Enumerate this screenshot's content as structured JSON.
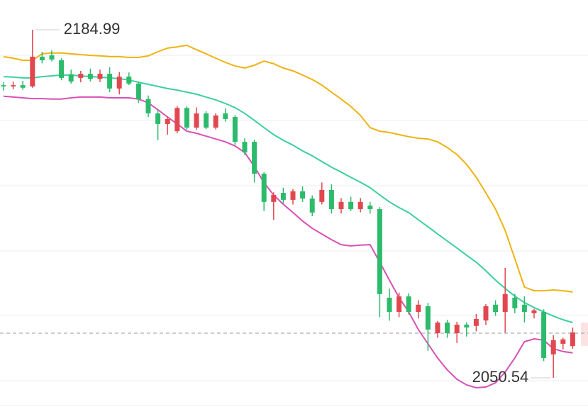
{
  "chart_data": {
    "type": "candlestick",
    "ylim": [
      2036.58,
      2196.49
    ],
    "up_color": "#e2474f",
    "down_color": "#2cbb6b",
    "max_label": "2184.99",
    "min_label": "2050.54",
    "reference_line": 2067.8,
    "open": [
      2163.6,
      2163.1,
      2163.6,
      2163.1,
      2174.6,
      2175.1,
      2173.2,
      2167.8,
      2166.4,
      2168.0,
      2166.0,
      2168.0,
      2162.3,
      2166.9,
      2164.2,
      2158.2,
      2152.7,
      2148.6,
      2145.8,
      2154.8,
      2147.2,
      2152.7,
      2147.2,
      2152.7,
      2151.3,
      2141.7,
      2141.7,
      2129.4,
      2118.5,
      2122.0,
      2119.3,
      2122.6,
      2119.8,
      2118.5,
      2123.1,
      2115.7,
      2118.5,
      2115.7,
      2117.1,
      2115.7,
      2081.5,
      2076.0,
      2082.0,
      2076.0,
      2078.2,
      2067.8,
      2071.9,
      2067.8,
      2071.1,
      2070.6,
      2072.7,
      2078.8,
      2076.0,
      2081.5,
      2078.8,
      2075.5,
      2076.0,
      2059.6,
      2063.7,
      2062.8
    ],
    "high": [
      2164.7,
      2165.0,
      2165.3,
      2184.99,
      2176.5,
      2177.0,
      2174.0,
      2169.6,
      2169.1,
      2170.0,
      2169.6,
      2170.5,
      2168.7,
      2168.5,
      2165.0,
      2159.6,
      2154.0,
      2151.5,
      2155.5,
      2155.4,
      2155.0,
      2153.5,
      2152.7,
      2154.6,
      2152.0,
      2143.0,
      2142.5,
      2130.0,
      2122.2,
      2124.0,
      2123.5,
      2124.5,
      2121.0,
      2126.0,
      2125.3,
      2120.0,
      2120.5,
      2120.0,
      2118.5,
      2116.5,
      2085.0,
      2083.5,
      2083.2,
      2080.5,
      2079.5,
      2072.5,
      2073.0,
      2072.2,
      2072.0,
      2075.2,
      2079.0,
      2080.5,
      2093.0,
      2083.0,
      2082.0,
      2077.2,
      2077.0,
      2067.0,
      2066.0,
      2070.0
    ],
    "low": [
      2161.5,
      2162.0,
      2161.8,
      2162.6,
      2172.0,
      2172.8,
      2165.5,
      2164.2,
      2164.7,
      2165.0,
      2164.8,
      2160.9,
      2160.0,
      2163.6,
      2156.8,
      2151.3,
      2142.3,
      2144.5,
      2145.0,
      2146.4,
      2146.4,
      2146.6,
      2146.5,
      2149.5,
      2140.6,
      2136.6,
      2126.0,
      2115.0,
      2111.6,
      2118.0,
      2117.5,
      2118.5,
      2113.0,
      2117.5,
      2114.0,
      2114.0,
      2115.0,
      2114.5,
      2114.0,
      2074.0,
      2072.6,
      2074.0,
      2075.0,
      2073.5,
      2061.0,
      2066.0,
      2066.0,
      2064.0,
      2066.5,
      2068.5,
      2071.0,
      2074.5,
      2068.0,
      2075.5,
      2072.0,
      2073.5,
      2057.0,
      2050.54,
      2061.5,
      2061.8
    ],
    "close": [
      2163.1,
      2163.6,
      2162.6,
      2174.6,
      2173.2,
      2173.5,
      2166.4,
      2165.0,
      2168.0,
      2166.0,
      2168.0,
      2162.3,
      2166.9,
      2164.2,
      2158.2,
      2152.7,
      2148.6,
      2150.5,
      2154.8,
      2147.2,
      2152.7,
      2147.2,
      2151.9,
      2150.5,
      2141.7,
      2137.6,
      2129.4,
      2118.5,
      2121.2,
      2119.3,
      2122.6,
      2119.8,
      2114.4,
      2123.1,
      2115.7,
      2118.5,
      2115.7,
      2118.5,
      2115.7,
      2082.9,
      2076.0,
      2082.0,
      2076.0,
      2078.8,
      2069.2,
      2071.9,
      2067.8,
      2071.1,
      2070.0,
      2073.3,
      2078.2,
      2076.0,
      2082.9,
      2077.4,
      2076.0,
      2076.6,
      2058.2,
      2065.1,
      2065.4,
      2068.1
    ],
    "bands": [
      {
        "color": "#eeb313",
        "values": [
          2174.6,
          2174.0,
          2173.2,
          2173.2,
          2175.7,
          2176.0,
          2176.0,
          2175.7,
          2175.4,
          2175.1,
          2174.9,
          2174.6,
          2174.6,
          2174.3,
          2174.3,
          2174.9,
          2176.5,
          2177.9,
          2178.4,
          2179.0,
          2177.3,
          2175.7,
          2174.0,
          2172.4,
          2171.0,
          2170.2,
          2171.3,
          2172.9,
          2171.9,
          2170.2,
          2169.1,
          2167.5,
          2165.8,
          2163.6,
          2160.9,
          2158.2,
          2155.4,
          2151.9,
          2147.2,
          2145.8,
          2145.3,
          2144.5,
          2143.7,
          2143.1,
          2142.8,
          2141.7,
          2139.5,
          2136.8,
          2133.0,
          2128.0,
          2122.0,
          2115.7,
          2107.5,
          2096.6,
          2085.6,
          2084.2,
          2084.2,
          2084.5,
          2084.2,
          2083.7
        ]
      },
      {
        "color": "#3ccf9f",
        "values": [
          2166.9,
          2166.7,
          2166.4,
          2166.4,
          2166.9,
          2167.2,
          2167.5,
          2167.5,
          2167.2,
          2166.9,
          2166.7,
          2166.4,
          2166.1,
          2165.6,
          2164.7,
          2163.9,
          2163.1,
          2162.3,
          2161.7,
          2160.9,
          2160.1,
          2159.0,
          2157.9,
          2156.5,
          2154.9,
          2152.7,
          2150.0,
          2147.2,
          2144.5,
          2142.3,
          2140.4,
          2138.2,
          2136.3,
          2134.1,
          2131.9,
          2130.0,
          2128.0,
          2126.1,
          2124.0,
          2121.2,
          2118.5,
          2116.3,
          2114.4,
          2111.6,
          2108.9,
          2106.1,
          2103.4,
          2100.7,
          2097.9,
          2095.2,
          2091.9,
          2088.3,
          2085.1,
          2082.1,
          2079.6,
          2077.7,
          2076.0,
          2074.4,
          2073.0,
          2071.9
        ]
      },
      {
        "color": "#d950b4",
        "values": [
          2159.3,
          2159.0,
          2158.7,
          2158.4,
          2158.4,
          2158.2,
          2158.2,
          2158.7,
          2159.0,
          2159.0,
          2159.0,
          2158.7,
          2158.7,
          2158.7,
          2158.2,
          2156.8,
          2154.1,
          2151.3,
          2148.6,
          2145.8,
          2145.0,
          2143.9,
          2142.8,
          2141.7,
          2140.1,
          2137.6,
          2132.2,
          2125.9,
          2121.2,
          2117.6,
          2114.4,
          2111.1,
          2108.3,
          2106.1,
          2103.9,
          2102.0,
          2101.5,
          2101.8,
          2102.0,
          2095.2,
          2088.3,
          2081.5,
          2076.0,
          2069.2,
          2063.7,
          2058.2,
          2053.6,
          2050.0,
          2047.8,
          2046.7,
          2047.0,
          2048.6,
          2052.8,
          2058.2,
          2064.5,
          2065.6,
          2065.1,
          2061.8,
          2060.7,
          2060.2
        ]
      }
    ]
  }
}
